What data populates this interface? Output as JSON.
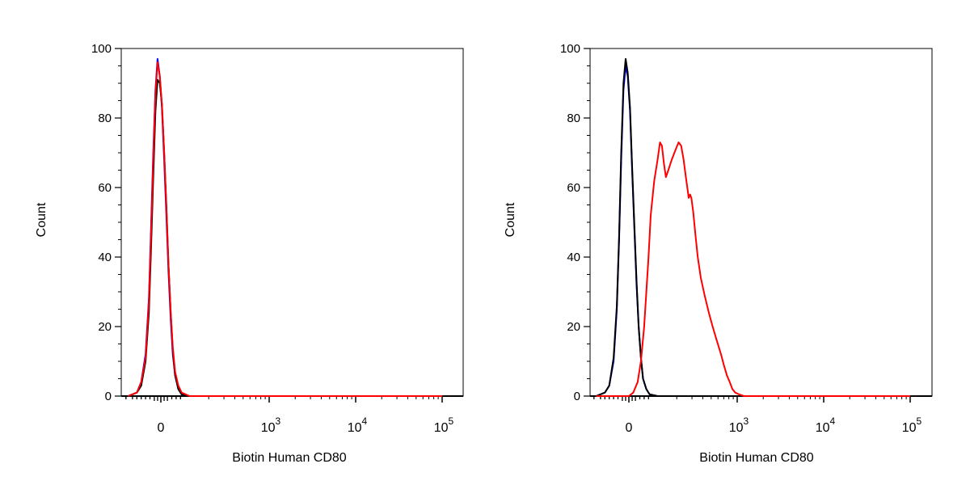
{
  "chart_data": [
    {
      "type": "line",
      "ylabel": "Count",
      "xlabel": "Biotin Human CD80",
      "ylim": [
        0,
        100
      ],
      "y_ticks": [
        "0",
        "20",
        "40",
        "60",
        "80",
        "100"
      ],
      "x_tick_labels": [
        {
          "base": "0",
          "exp": ""
        },
        {
          "base": "10",
          "exp": "3"
        },
        {
          "base": "10",
          "exp": "4"
        },
        {
          "base": "10",
          "exp": "5"
        }
      ],
      "x_scale": "biexponential",
      "grid": false,
      "series": [
        {
          "color": "#0000ff",
          "points": [
            [
              -150,
              0
            ],
            [
              -110,
              1
            ],
            [
              -90,
              4
            ],
            [
              -70,
              12
            ],
            [
              -55,
              28
            ],
            [
              -45,
              48
            ],
            [
              -35,
              70
            ],
            [
              -25,
              88
            ],
            [
              -15,
              97
            ],
            [
              -5,
              92
            ],
            [
              5,
              83
            ],
            [
              15,
              68
            ],
            [
              25,
              52
            ],
            [
              35,
              36
            ],
            [
              45,
              22
            ],
            [
              55,
              12
            ],
            [
              65,
              6
            ],
            [
              80,
              2
            ],
            [
              95,
              0.5
            ],
            [
              120,
              0
            ],
            [
              100000,
              0
            ]
          ]
        },
        {
          "color": "#000000",
          "points": [
            [
              -150,
              0
            ],
            [
              -110,
              1
            ],
            [
              -90,
              3
            ],
            [
              -70,
              10
            ],
            [
              -55,
              24
            ],
            [
              -45,
              42
            ],
            [
              -35,
              63
            ],
            [
              -25,
              82
            ],
            [
              -15,
              91
            ],
            [
              -5,
              90
            ],
            [
              5,
              84
            ],
            [
              15,
              70
            ],
            [
              25,
              55
            ],
            [
              35,
              38
            ],
            [
              45,
              24
            ],
            [
              55,
              13
            ],
            [
              65,
              6
            ],
            [
              80,
              2
            ],
            [
              95,
              0.5
            ],
            [
              120,
              0
            ],
            [
              100000,
              0
            ]
          ]
        },
        {
          "color": "#ff0000",
          "points": [
            [
              -150,
              0
            ],
            [
              -110,
              1
            ],
            [
              -90,
              4
            ],
            [
              -70,
              11
            ],
            [
              -55,
              27
            ],
            [
              -45,
              46
            ],
            [
              -35,
              68
            ],
            [
              -25,
              87
            ],
            [
              -15,
              96
            ],
            [
              -5,
              92
            ],
            [
              5,
              84
            ],
            [
              15,
              70
            ],
            [
              25,
              54
            ],
            [
              35,
              38
            ],
            [
              45,
              24
            ],
            [
              55,
              14
            ],
            [
              65,
              7
            ],
            [
              80,
              3
            ],
            [
              95,
              1
            ],
            [
              120,
              0
            ],
            [
              100000,
              0
            ]
          ]
        }
      ]
    },
    {
      "type": "line",
      "ylabel": "Count",
      "xlabel": "Biotin Human CD80",
      "ylim": [
        0,
        100
      ],
      "y_ticks": [
        "0",
        "20",
        "40",
        "60",
        "80",
        "100"
      ],
      "x_tick_labels": [
        {
          "base": "0",
          "exp": ""
        },
        {
          "base": "10",
          "exp": "3"
        },
        {
          "base": "10",
          "exp": "4"
        },
        {
          "base": "10",
          "exp": "5"
        }
      ],
      "x_scale": "biexponential",
      "grid": false,
      "series": [
        {
          "color": "#0000ff",
          "points": [
            [
              -150,
              0
            ],
            [
              -110,
              1
            ],
            [
              -90,
              3
            ],
            [
              -70,
              10
            ],
            [
              -55,
              25
            ],
            [
              -45,
              45
            ],
            [
              -35,
              68
            ],
            [
              -25,
              88
            ],
            [
              -15,
              95
            ],
            [
              -5,
              92
            ],
            [
              5,
              82
            ],
            [
              15,
              65
            ],
            [
              25,
              48
            ],
            [
              35,
              32
            ],
            [
              45,
              20
            ],
            [
              55,
              11
            ],
            [
              65,
              5
            ],
            [
              80,
              2
            ],
            [
              95,
              0.5
            ],
            [
              120,
              0
            ],
            [
              100000,
              0
            ]
          ]
        },
        {
          "color": "#000000",
          "points": [
            [
              -150,
              0
            ],
            [
              -110,
              1
            ],
            [
              -90,
              3
            ],
            [
              -70,
              11
            ],
            [
              -55,
              26
            ],
            [
              -45,
              46
            ],
            [
              -35,
              70
            ],
            [
              -25,
              90
            ],
            [
              -15,
              97
            ],
            [
              -5,
              93
            ],
            [
              5,
              83
            ],
            [
              15,
              66
            ],
            [
              25,
              49
            ],
            [
              35,
              33
            ],
            [
              45,
              20
            ],
            [
              55,
              11
            ],
            [
              65,
              5
            ],
            [
              80,
              2
            ],
            [
              95,
              0.5
            ],
            [
              120,
              0
            ],
            [
              100000,
              0
            ]
          ]
        },
        {
          "color": "#ff0000",
          "points": [
            [
              -150,
              0
            ],
            [
              0,
              0
            ],
            [
              20,
              1
            ],
            [
              40,
              4
            ],
            [
              55,
              10
            ],
            [
              70,
              20
            ],
            [
              80,
              30
            ],
            [
              90,
              40
            ],
            [
              100,
              52
            ],
            [
              110,
              62
            ],
            [
              120,
              68
            ],
            [
              128,
              73
            ],
            [
              135,
              72
            ],
            [
              142,
              67
            ],
            [
              150,
              63
            ],
            [
              160,
              65
            ],
            [
              175,
              68
            ],
            [
              195,
              71
            ],
            [
              210,
              73
            ],
            [
              225,
              72
            ],
            [
              240,
              68
            ],
            [
              255,
              63
            ],
            [
              265,
              60
            ],
            [
              275,
              57
            ],
            [
              285,
              58
            ],
            [
              295,
              57
            ],
            [
              310,
              53
            ],
            [
              330,
              46
            ],
            [
              350,
              40
            ],
            [
              380,
              34
            ],
            [
              420,
              29
            ],
            [
              470,
              24
            ],
            [
              520,
              20
            ],
            [
              580,
              16
            ],
            [
              650,
              12
            ],
            [
              700,
              9
            ],
            [
              760,
              6
            ],
            [
              820,
              4
            ],
            [
              880,
              2
            ],
            [
              950,
              1
            ],
            [
              1050,
              0.5
            ],
            [
              1200,
              0
            ],
            [
              100000,
              0
            ]
          ]
        }
      ]
    }
  ]
}
